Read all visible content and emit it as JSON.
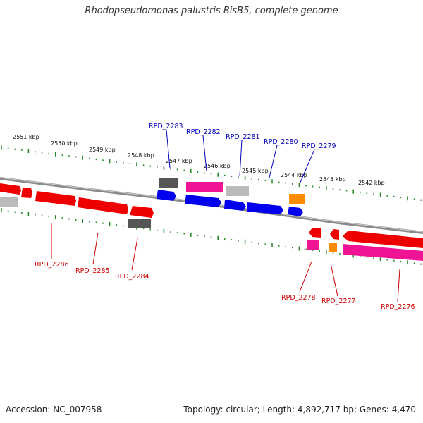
{
  "title": "Rhodopseudomonas palustris BisB5, complete genome",
  "accession_text": "Accession: NC_007958",
  "topology_text": "Topology: circular; Length: 4,892,717 bp; Genes: 4,470",
  "colors": {
    "backbone": "#8a8a8a",
    "tick": "#2a8a2a",
    "forward_label": "#0000bb",
    "reverse_label": "#cc0000",
    "gene_red": "#ee0000",
    "gene_blue": "#0000ee",
    "gene_pink": "#ee1493",
    "gene_orange": "#ff8c00",
    "gene_darkgray": "#555555",
    "gene_lightgray": "#bbbbbb"
  },
  "ruler_labels": [
    "2551 kbp",
    "2550 kbp",
    "2549 kbp",
    "2548 kbp",
    "2547 kbp",
    "2546 kbp",
    "2545 kbp",
    "2544 kbp",
    "2543 kbp",
    "2542 kbp"
  ],
  "forward_genes": [
    "RPD_2283",
    "RPD_2282",
    "RPD_2281",
    "RPD_2280",
    "RPD_2279"
  ],
  "reverse_genes": [
    "RPD_2286",
    "RPD_2285",
    "RPD_2284",
    "RPD_2278",
    "RPD_2277",
    "RPD_2276"
  ]
}
